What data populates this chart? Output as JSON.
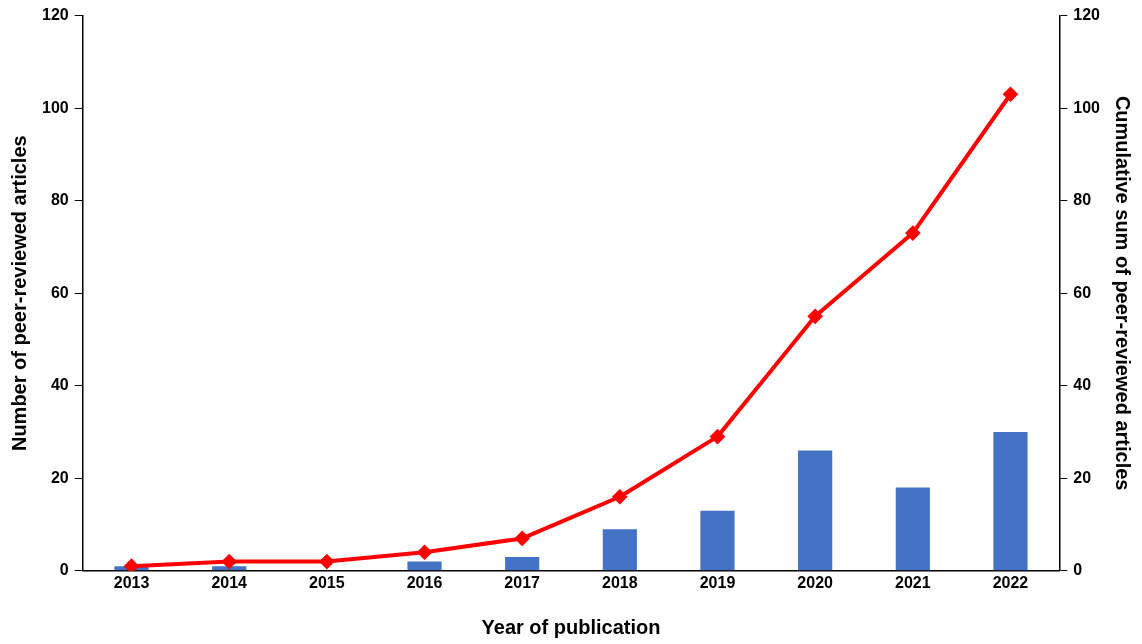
{
  "chart_data": {
    "type": "bar",
    "xlabel": "Year of publication",
    "ylabel": "Number of peer-reviewed articles",
    "y2label": "Cumulative sum of peer-reviewed articles",
    "categories": [
      "2013",
      "2014",
      "2015",
      "2016",
      "2017",
      "2018",
      "2019",
      "2020",
      "2021",
      "2022"
    ],
    "series": [
      {
        "color": "#4472c4",
        "values": [
          1,
          1,
          0,
          2,
          3,
          9,
          13,
          26,
          18,
          30
        ]
      },
      {
        "type": "line",
        "axis": "y2",
        "color": "#ff0000",
        "marker": "diamond",
        "values": [
          1,
          2,
          2,
          4,
          7,
          16,
          29,
          55,
          73,
          103
        ]
      }
    ],
    "ylim": [
      0,
      120
    ],
    "yticks": [
      0,
      20,
      40,
      60,
      80,
      100,
      120
    ],
    "y2lim": [
      0,
      120
    ],
    "y2ticks": [
      0,
      20,
      40,
      60,
      80,
      100,
      120
    ],
    "grid": false
  }
}
